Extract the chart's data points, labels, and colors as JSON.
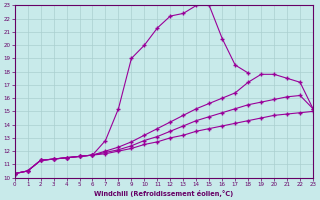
{
  "xlabel": "Windchill (Refroidissement éolien,°C)",
  "bg_color": "#c8eaea",
  "grid_color": "#aacfcf",
  "line_color": "#990099",
  "xlim": [
    0,
    23
  ],
  "ylim": [
    10,
    23
  ],
  "xticks": [
    0,
    1,
    2,
    3,
    4,
    5,
    6,
    7,
    8,
    9,
    10,
    11,
    12,
    13,
    14,
    15,
    16,
    17,
    18,
    19,
    20,
    21,
    22,
    23
  ],
  "yticks": [
    10,
    11,
    12,
    13,
    14,
    15,
    16,
    17,
    18,
    19,
    20,
    21,
    22,
    23
  ],
  "line1_x": [
    0,
    1,
    2,
    3,
    4,
    5,
    6,
    7,
    8,
    9,
    10,
    11,
    12,
    13,
    14,
    15,
    16,
    17,
    18
  ],
  "line1_y": [
    10.3,
    10.5,
    11.3,
    11.4,
    11.5,
    11.6,
    11.7,
    12.8,
    15.2,
    19.0,
    20.0,
    21.3,
    22.2,
    22.4,
    23.0,
    23.0,
    20.5,
    18.5,
    17.9
  ],
  "line2_x": [
    0,
    1,
    2,
    3,
    4,
    5,
    6,
    7,
    8,
    9,
    10,
    11,
    12,
    13,
    14,
    15,
    16,
    17,
    18,
    19,
    20,
    21,
    22,
    23
  ],
  "line2_y": [
    10.3,
    10.5,
    11.3,
    11.4,
    11.5,
    11.6,
    11.7,
    12.0,
    12.3,
    12.7,
    13.2,
    13.7,
    14.2,
    14.7,
    15.2,
    15.6,
    16.0,
    16.4,
    17.2,
    17.8,
    17.8,
    17.5,
    17.2,
    15.2
  ],
  "line3_x": [
    0,
    1,
    2,
    3,
    4,
    5,
    6,
    7,
    8,
    9,
    10,
    11,
    12,
    13,
    14,
    15,
    16,
    17,
    18,
    19,
    20,
    21,
    22,
    23
  ],
  "line3_y": [
    10.3,
    10.5,
    11.3,
    11.4,
    11.5,
    11.6,
    11.7,
    11.9,
    12.1,
    12.4,
    12.8,
    13.1,
    13.5,
    13.9,
    14.3,
    14.6,
    14.9,
    15.2,
    15.5,
    15.7,
    15.9,
    16.1,
    16.2,
    15.2
  ],
  "line4_x": [
    0,
    1,
    2,
    3,
    4,
    5,
    6,
    7,
    8,
    9,
    10,
    11,
    12,
    13,
    14,
    15,
    16,
    17,
    18,
    19,
    20,
    21,
    22,
    23
  ],
  "line4_y": [
    10.3,
    10.5,
    11.3,
    11.4,
    11.5,
    11.6,
    11.7,
    11.8,
    12.0,
    12.2,
    12.5,
    12.7,
    13.0,
    13.2,
    13.5,
    13.7,
    13.9,
    14.1,
    14.3,
    14.5,
    14.7,
    14.8,
    14.9,
    15.0
  ]
}
